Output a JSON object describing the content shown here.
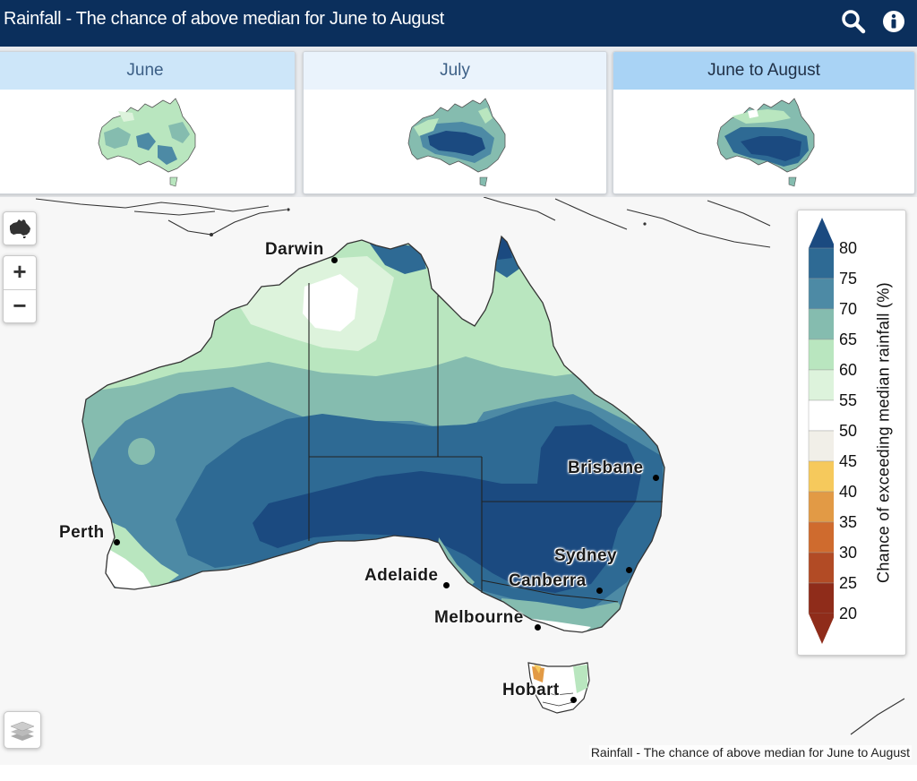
{
  "header": {
    "title": "Rainfall - The chance of above median for June to August",
    "search_icon": "search-icon",
    "info_icon": "info-icon"
  },
  "tabs": [
    {
      "label": "June",
      "state": "inactive"
    },
    {
      "label": "July",
      "state": "inactive"
    },
    {
      "label": "June to August",
      "state": "active"
    }
  ],
  "map": {
    "controls": {
      "home_icon": "australia-outline-icon",
      "zoom_in": "+",
      "zoom_out": "−",
      "layers_icon": "layers-icon"
    },
    "cities": [
      {
        "name": "Darwin"
      },
      {
        "name": "Brisbane"
      },
      {
        "name": "Perth"
      },
      {
        "name": "Sydney"
      },
      {
        "name": "Adelaide"
      },
      {
        "name": "Canberra"
      },
      {
        "name": "Melbourne"
      },
      {
        "name": "Hobart"
      }
    ],
    "attribution": "Rainfall - The chance of above median for June to August"
  },
  "legend": {
    "title": "Chance of exceeding median rainfall (%)",
    "values": [
      "80",
      "75",
      "70",
      "65",
      "60",
      "55",
      "50",
      "45",
      "40",
      "35",
      "30",
      "25",
      "20"
    ],
    "colors": [
      "#1b4a80",
      "#2e6a94",
      "#4d8aa5",
      "#85bcaf",
      "#b9e6bf",
      "#ddf3dc",
      "#ffffff",
      "#f1efe8",
      "#f6c95c",
      "#e29a45",
      "#cf6b2e",
      "#b24b25",
      "#8f2c1a"
    ]
  }
}
